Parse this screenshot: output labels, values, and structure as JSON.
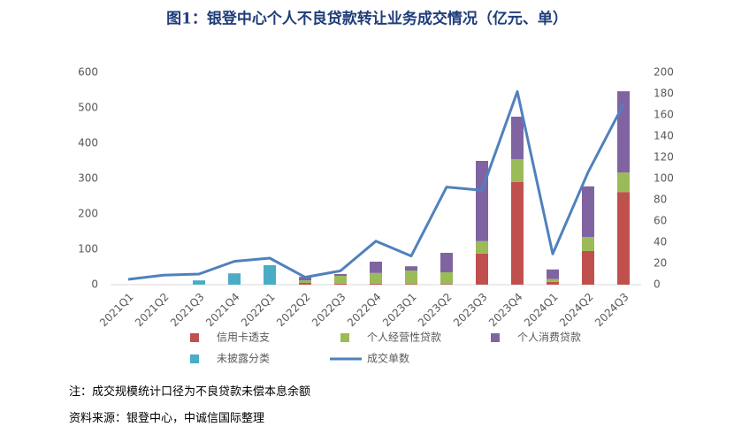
{
  "chart_data": {
    "type": "bar",
    "title": "图1：银登中心个人不良贷款转让业务成交情况（亿元、单）",
    "categories": [
      "2021Q1",
      "2021Q2",
      "2021Q3",
      "2021Q4",
      "2022Q1",
      "2022Q2",
      "2022Q3",
      "2022Q4",
      "2023Q1",
      "2023Q2",
      "2023Q3",
      "2023Q4",
      "2024Q1",
      "2024Q2",
      "2024Q3"
    ],
    "series": [
      {
        "name": "信用卡透支",
        "color": "#c0504d",
        "values": [
          null,
          null,
          null,
          null,
          null,
          5,
          3,
          3,
          2,
          2,
          88,
          290,
          8,
          95,
          262
        ]
      },
      {
        "name": "个人经营性贷款",
        "color": "#9bbb59",
        "values": [
          null,
          null,
          null,
          null,
          null,
          7,
          22,
          30,
          38,
          33,
          35,
          65,
          8,
          40,
          55
        ]
      },
      {
        "name": "个人消费贷款",
        "color": "#8064a2",
        "values": [
          null,
          null,
          null,
          null,
          null,
          10,
          5,
          32,
          12,
          55,
          227,
          120,
          27,
          143,
          230
        ]
      },
      {
        "name": "未披露分类",
        "color": "#4bacc6",
        "values": [
          null,
          null,
          12,
          32,
          55,
          null,
          null,
          null,
          null,
          null,
          null,
          null,
          null,
          null,
          null
        ]
      },
      {
        "name": "成交单数",
        "color": "#4f81bd",
        "type": "line",
        "axis": "y2",
        "values": [
          5,
          9,
          10,
          22,
          25,
          7,
          13,
          41,
          27,
          92,
          89,
          182,
          29,
          106,
          170
        ]
      }
    ],
    "ylim": [
      0,
      600
    ],
    "yticks": [
      0,
      100,
      200,
      300,
      400,
      500,
      600
    ],
    "y2lim": [
      0,
      200
    ],
    "y2ticks": [
      0,
      20,
      40,
      60,
      80,
      100,
      120,
      140,
      160,
      180,
      200
    ],
    "notes": [
      "注：成交规模统计口径为不良贷款未偿本息余额",
      "资料来源：银登中心，中诚信国际整理"
    ]
  }
}
